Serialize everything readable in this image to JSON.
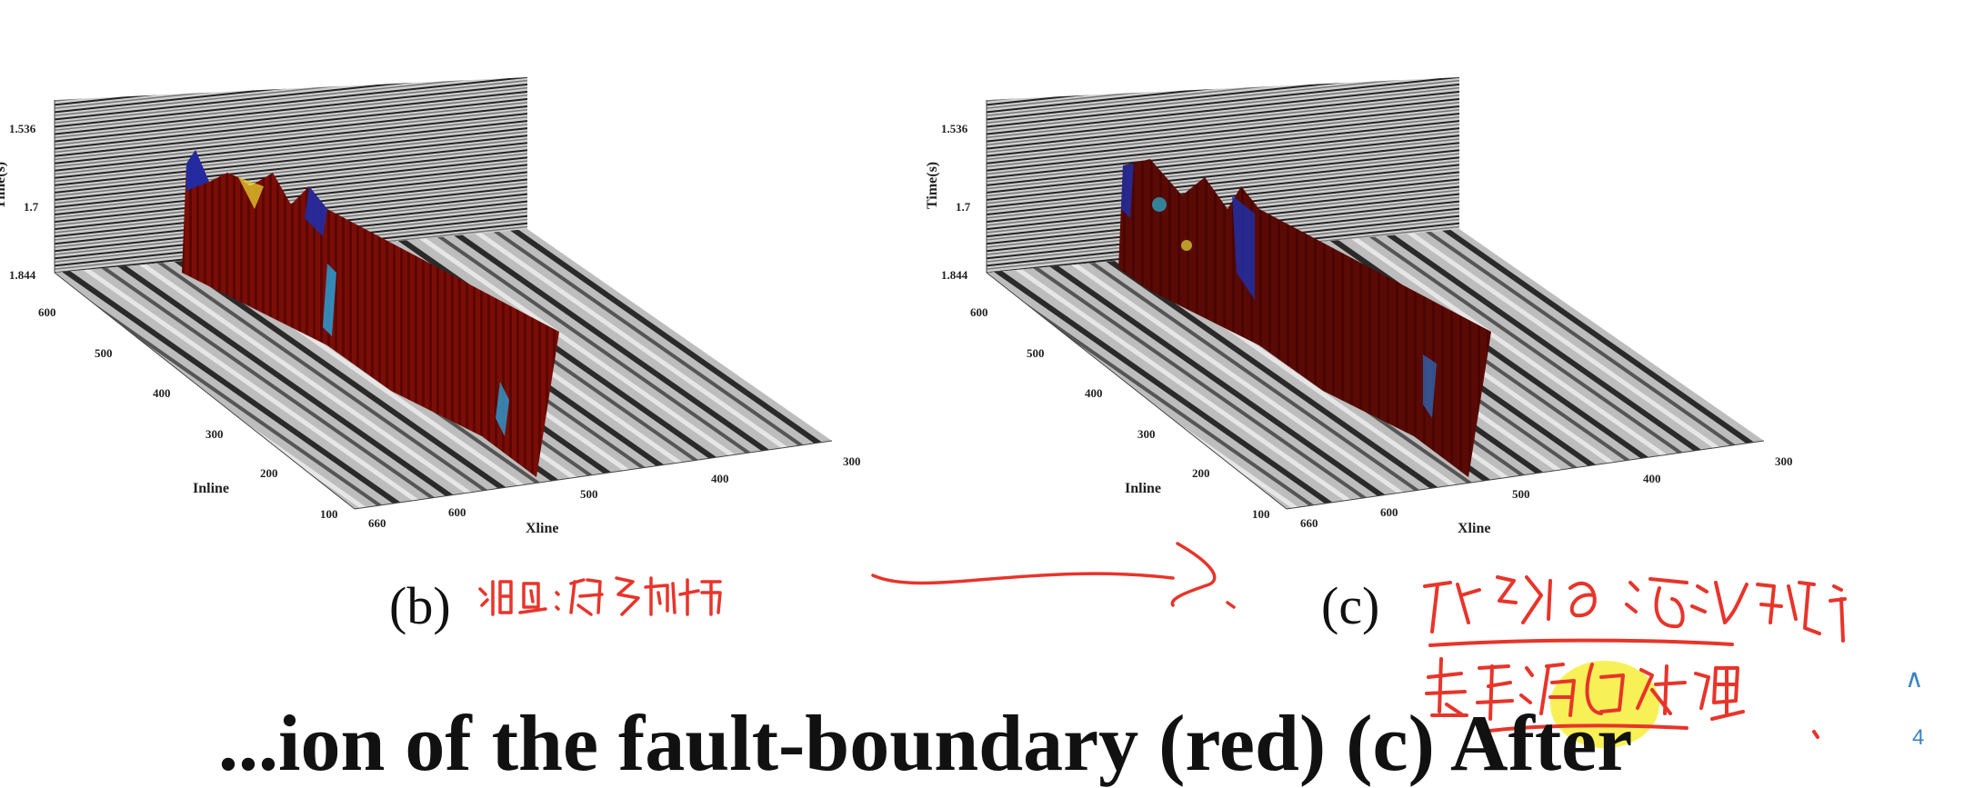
{
  "panels": [
    {
      "id": "b",
      "caption": "(b)",
      "annotation": "洞:很多阶梯",
      "time_axis": {
        "label": "Time(s)",
        "ticks": [
          "1.536",
          "1.7",
          "1.844"
        ]
      },
      "inline_axis": {
        "label": "Inline",
        "ticks": [
          "600",
          "500",
          "400",
          "300",
          "200",
          "100"
        ]
      },
      "xline_axis": {
        "label": "Xline",
        "ticks": [
          "660",
          "600",
          "500",
          "400",
          "300"
        ]
      }
    },
    {
      "id": "c",
      "caption": "(c)",
      "annotation": "引导滤波方法对其平滑处理",
      "time_axis": {
        "label": "Time(s)",
        "ticks": [
          "1.536",
          "1.7",
          "1.844"
        ]
      },
      "inline_axis": {
        "label": "Inline",
        "ticks": [
          "600",
          "500",
          "400",
          "300",
          "200",
          "100"
        ]
      },
      "xline_axis": {
        "label": "Xline",
        "ticks": [
          "660",
          "600",
          "500",
          "400",
          "300"
        ]
      }
    }
  ],
  "bottom_text": "...ion of the fault-boundary (red) (c) After",
  "page_number": "4",
  "nav_up_icon": "chevron-up-icon",
  "colors": {
    "ink": "#e8342a",
    "highlight": "#f6ee3a",
    "nav": "#3b82c4"
  }
}
